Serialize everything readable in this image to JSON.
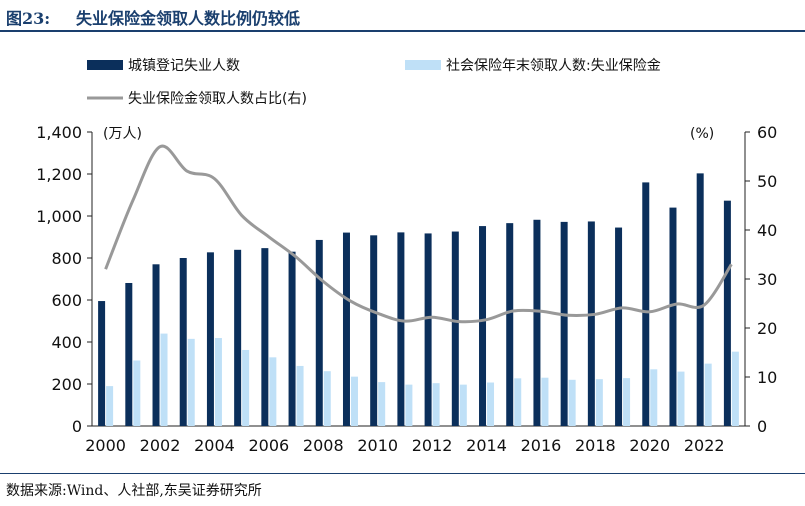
{
  "figure": {
    "number": "图23:",
    "title": "失业保险金领取人数比例仍较低",
    "source": "数据来源:Wind、人社部,东吴证券研究所"
  },
  "colors": {
    "navy": "#0b2f5b",
    "light": "#bfe0f7",
    "line": "#999999",
    "title": "#1a3f6e"
  },
  "chart_data": {
    "type": "bar",
    "title": "失业保险金领取人数比例仍较低",
    "categories": [
      "2000",
      "2001",
      "2002",
      "2003",
      "2004",
      "2005",
      "2006",
      "2007",
      "2008",
      "2009",
      "2010",
      "2011",
      "2012",
      "2013",
      "2014",
      "2015",
      "2016",
      "2017",
      "2018",
      "2019",
      "2020",
      "2021",
      "2022",
      "2023"
    ],
    "x_tick_labels": [
      "2000",
      "2002",
      "2004",
      "2006",
      "2008",
      "2010",
      "2012",
      "2014",
      "2016",
      "2018",
      "2020",
      "2022"
    ],
    "left_unit": "(万人)",
    "right_unit": "(%)",
    "ylim_left": [
      0,
      1400
    ],
    "yticks_left": [
      "0",
      "200",
      "400",
      "600",
      "800",
      "1,000",
      "1,200",
      "1,400"
    ],
    "ylim_right": [
      0,
      60
    ],
    "yticks_right": [
      "0",
      "10",
      "20",
      "30",
      "40",
      "50",
      "60"
    ],
    "series": [
      {
        "name": "城镇登记失业人数",
        "type": "bar",
        "axis": "left",
        "values": [
          595,
          681,
          770,
          800,
          827,
          839,
          847,
          830,
          886,
          921,
          908,
          922,
          917,
          926,
          952,
          966,
          982,
          972,
          974,
          945,
          1160,
          1040,
          1203,
          1073
        ]
      },
      {
        "name": "社会保险年末领取人数:失业保险金",
        "type": "bar",
        "axis": "left",
        "values": [
          190,
          312,
          440,
          415,
          419,
          362,
          327,
          286,
          261,
          235,
          209,
          197,
          204,
          197,
          207,
          227,
          230,
          220,
          223,
          228,
          270,
          259,
          297,
          354
        ]
      },
      {
        "name": "失业保险金领取人数占比(右)",
        "type": "line",
        "axis": "right",
        "values": [
          32,
          46,
          57,
          52,
          50.5,
          43,
          38.6,
          34.5,
          29.5,
          25.5,
          23,
          21.4,
          22.2,
          21.3,
          21.7,
          23.5,
          23.4,
          22.6,
          22.8,
          24.1,
          23.3,
          24.9,
          24.7,
          33
        ]
      }
    ]
  }
}
